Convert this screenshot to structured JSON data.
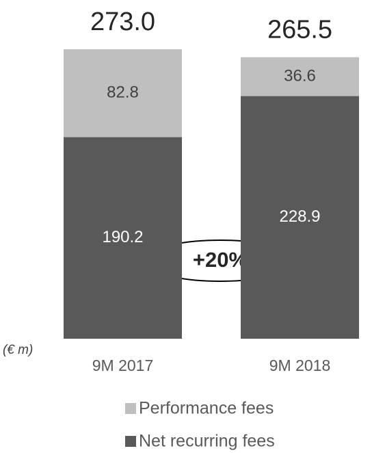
{
  "chart_data": {
    "type": "stacked_bar",
    "categories": [
      "9M 2017",
      "9M 2018"
    ],
    "series": [
      {
        "name": "Performance fees",
        "color": "#bfbfbf",
        "label_color": "#404040",
        "values": [
          82.8,
          36.6
        ]
      },
      {
        "name": "Net recurring fees",
        "color": "#595959",
        "label_color": "#ffffff",
        "values": [
          190.2,
          228.9
        ]
      }
    ],
    "totals": {
      "values": [
        273,
        265.5
      ],
      "value_labels": [
        "273.0",
        "265.5"
      ]
    },
    "annotation": "+20%",
    "unit_label": "(€ m)"
  }
}
